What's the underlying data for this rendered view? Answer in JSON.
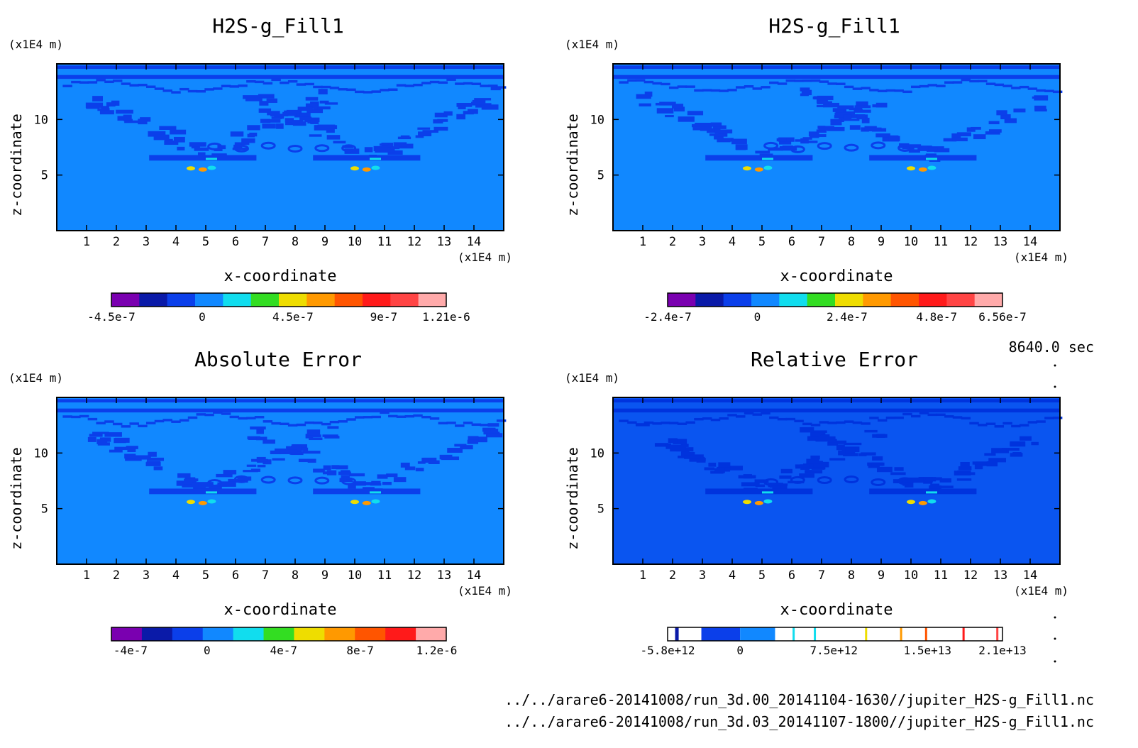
{
  "time_label": "8640.0 sec",
  "files": [
    "../../arare6-20141008/run_3d.00_20141104-1630//jupiter_H2S-g_Fill1.nc",
    "../../arare6-20141008/run_3d.03_20141107-1800//jupiter_H2S-g_Fill1.nc"
  ],
  "colors": {
    "background_field": "#1188ff",
    "contour_dark": "#0b3fea",
    "relative_background": "#0a55f0",
    "palette": [
      "#7a00b0",
      "#0a1aa8",
      "#0b3fea",
      "#1188ff",
      "#11ddee",
      "#33dd22",
      "#eedd00",
      "#ff9900",
      "#ff5500",
      "#ff1a1a",
      "#ff4444",
      "#ffaaaa"
    ]
  },
  "chart_data": [
    {
      "type": "heatmap",
      "title": "H2S-g_Fill1",
      "xlabel": "x-coordinate",
      "ylabel": "z-coordinate",
      "x_unit": "(x1E4 m)",
      "y_unit": "(x1E4 m)",
      "xlim": [
        0,
        15
      ],
      "ylim": [
        0,
        15
      ],
      "x_ticks": [
        "1",
        "2",
        "3",
        "4",
        "5",
        "6",
        "7",
        "8",
        "9",
        "10",
        "11",
        "12",
        "13",
        "14"
      ],
      "y_ticks": [
        "5",
        "10"
      ],
      "colorbar": {
        "ticks": [
          "-4.5e-7",
          "0",
          "4.5e-7",
          "9e-7",
          "1.21e-6"
        ],
        "range": [
          -4.5e-07,
          1.21e-06
        ]
      }
    },
    {
      "type": "heatmap",
      "title": "H2S-g_Fill1",
      "xlabel": "x-coordinate",
      "ylabel": "z-coordinate",
      "x_unit": "(x1E4 m)",
      "y_unit": "(x1E4 m)",
      "xlim": [
        0,
        15
      ],
      "ylim": [
        0,
        15
      ],
      "x_ticks": [
        "1",
        "2",
        "3",
        "4",
        "5",
        "6",
        "7",
        "8",
        "9",
        "10",
        "11",
        "12",
        "13",
        "14"
      ],
      "y_ticks": [
        "5",
        "10"
      ],
      "colorbar": {
        "ticks": [
          "-2.4e-7",
          "0",
          "2.4e-7",
          "4.8e-7",
          "6.56e-7"
        ],
        "range": [
          -2.4e-07,
          6.56e-07
        ]
      }
    },
    {
      "type": "heatmap",
      "title": "Absolute Error",
      "xlabel": "x-coordinate",
      "ylabel": "z-coordinate",
      "x_unit": "(x1E4 m)",
      "y_unit": "(x1E4 m)",
      "xlim": [
        0,
        15
      ],
      "ylim": [
        0,
        15
      ],
      "x_ticks": [
        "1",
        "2",
        "3",
        "4",
        "5",
        "6",
        "7",
        "8",
        "9",
        "10",
        "11",
        "12",
        "13",
        "14"
      ],
      "y_ticks": [
        "5",
        "10"
      ],
      "colorbar": {
        "ticks": [
          "-4e-7",
          "0",
          "4e-7",
          "8e-7",
          "1.2e-6"
        ],
        "range": [
          -5e-07,
          1.25e-06
        ]
      }
    },
    {
      "type": "heatmap",
      "title": "Relative Error",
      "xlabel": "x-coordinate",
      "ylabel": "z-coordinate",
      "x_unit": "(x1E4 m)",
      "y_unit": "(x1E4 m)",
      "xlim": [
        0,
        15
      ],
      "ylim": [
        0,
        15
      ],
      "x_ticks": [
        "1",
        "2",
        "3",
        "4",
        "5",
        "6",
        "7",
        "8",
        "9",
        "10",
        "11",
        "12",
        "13",
        "14"
      ],
      "y_ticks": [
        "5",
        "10"
      ],
      "colorbar": {
        "ticks": [
          "-5.8e+12",
          "0",
          "7.5e+12",
          "1.5e+13",
          "2.1e+13"
        ],
        "range": [
          -5800000000000.0,
          21000000000000.0
        ]
      }
    }
  ]
}
